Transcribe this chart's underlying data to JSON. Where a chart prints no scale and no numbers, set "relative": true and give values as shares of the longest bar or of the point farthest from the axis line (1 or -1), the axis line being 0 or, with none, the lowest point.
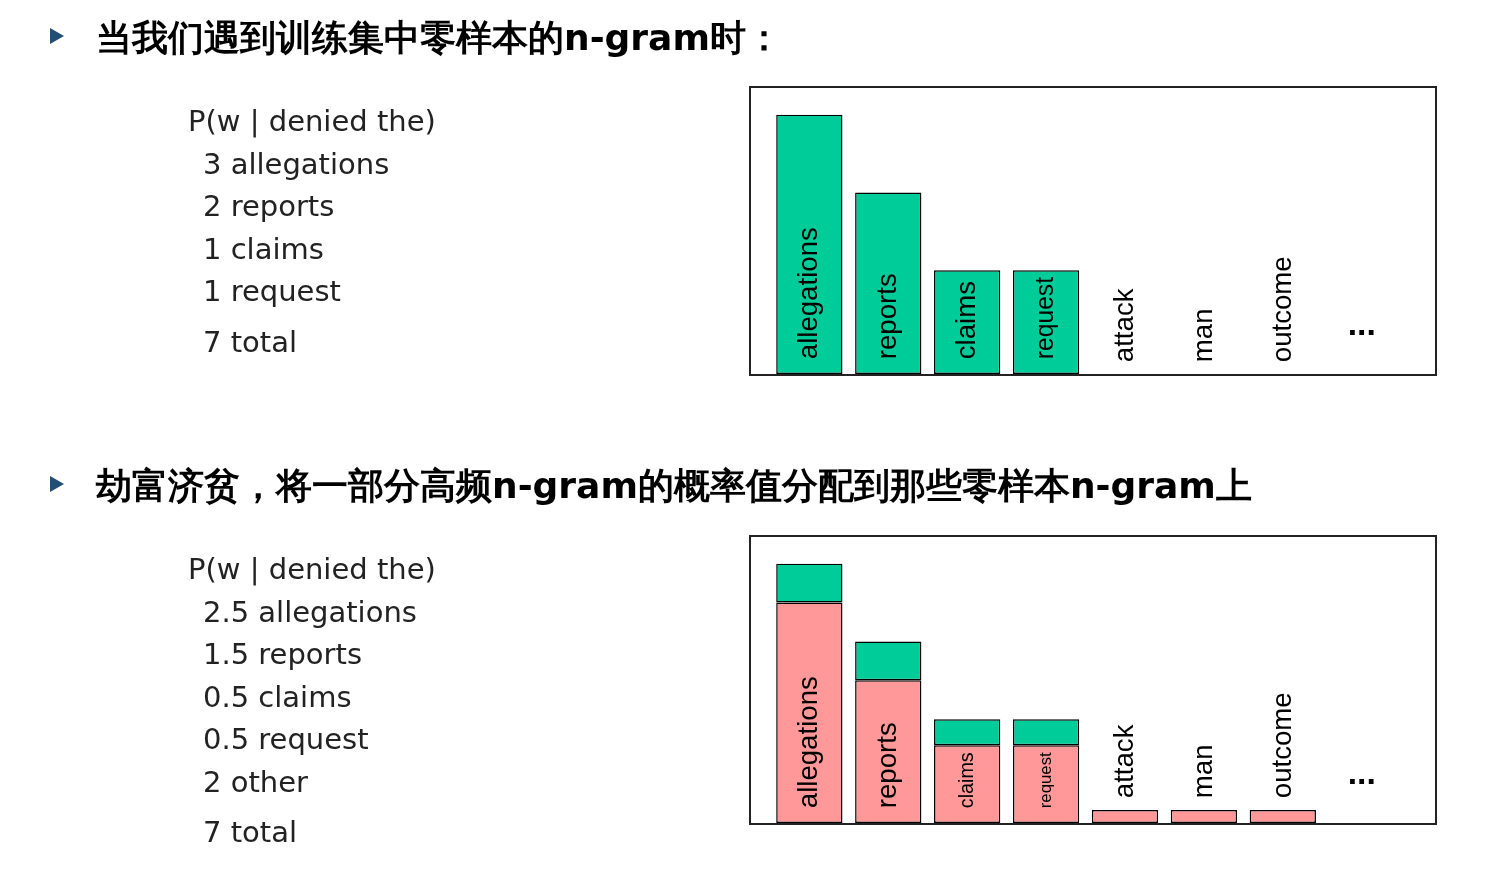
{
  "chart_data": [
    {
      "type": "bar",
      "title": "当我们遇到训练集中零样本的n-gram时：",
      "relative": true,
      "legend": false,
      "categories": [
        "allegations",
        "reports",
        "claims",
        "request",
        "attack",
        "man",
        "outcome",
        "..."
      ],
      "series": [
        {
          "color": "#00cc99",
          "values": [
            1,
            0.7,
            0.4,
            0.4,
            0,
            0,
            0,
            null
          ]
        }
      ],
      "annotations": [
        "P(w | denied the)",
        "3 allegations",
        "2 reports",
        "1 claims",
        "1 request",
        "7 total"
      ]
    },
    {
      "type": "bar",
      "title": "劫富济贫，将一部分高频n-gram的概率值分配到那些零样本n-gram上",
      "relative": true,
      "stacked": true,
      "legend": false,
      "categories": [
        "allegations",
        "reports",
        "claims",
        "request",
        "attack",
        "man",
        "outcome",
        "..."
      ],
      "series": [
        {
          "color": "#ff9999",
          "values": [
            0.85,
            0.55,
            0.3,
            0.3,
            0.05,
            0.05,
            0.05,
            null
          ]
        },
        {
          "color": "#00cc99",
          "values": [
            0.15,
            0.15,
            0.1,
            0.1,
            0,
            0,
            0,
            null
          ]
        }
      ],
      "annotations": [
        "P(w | denied the)",
        "2.5 allegations",
        "1.5 reports",
        "0.5 claims",
        "0.5 request",
        "2 other",
        "7 total"
      ]
    }
  ]
}
